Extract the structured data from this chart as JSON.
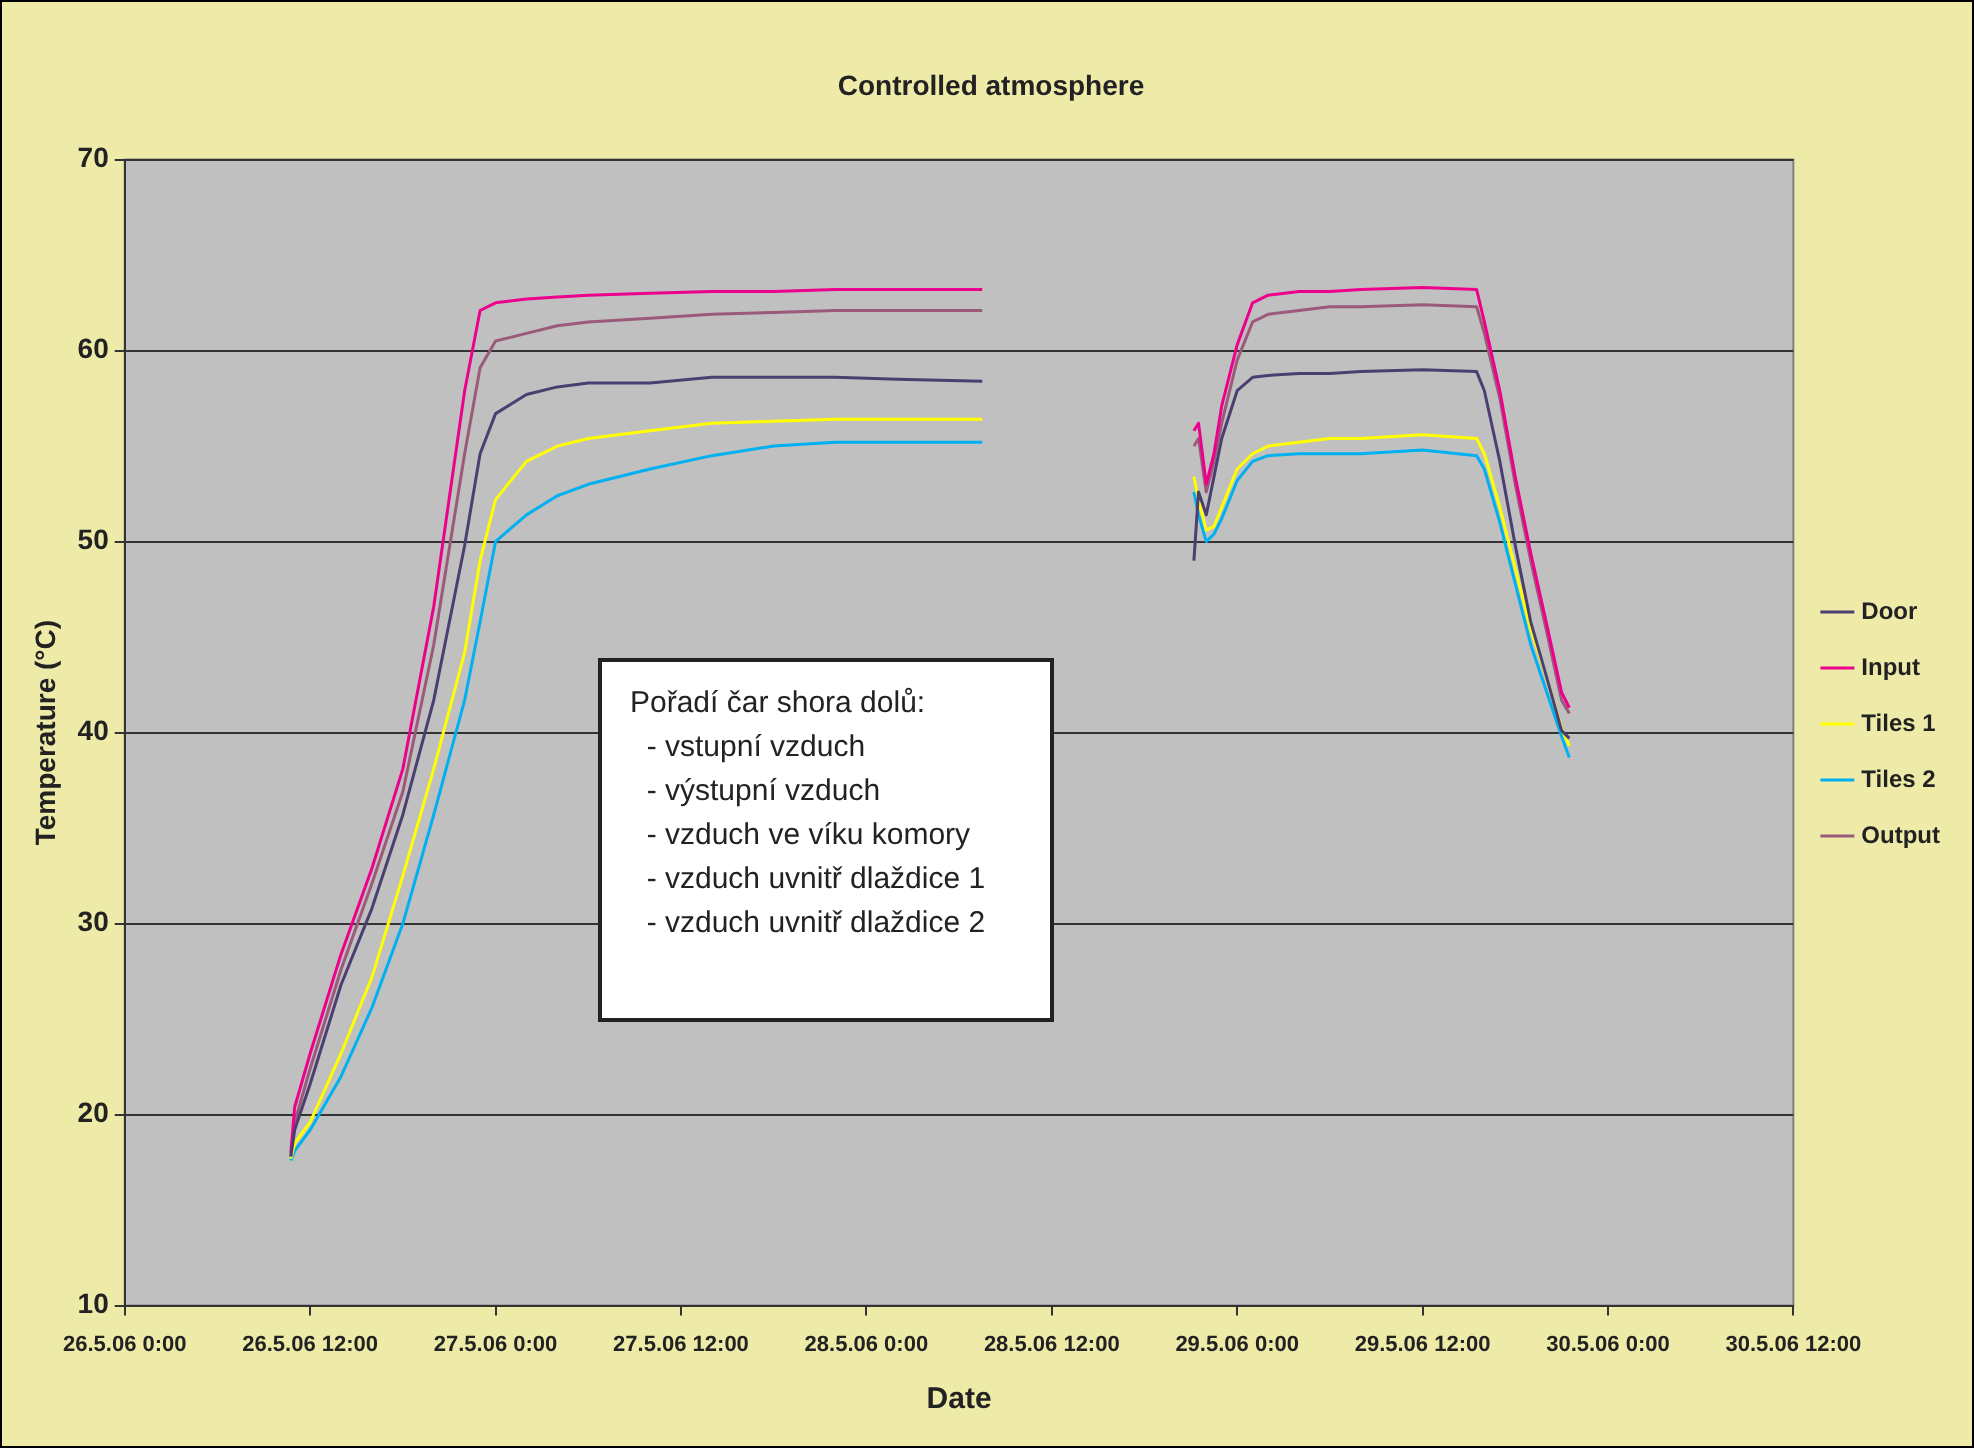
{
  "chart_data": {
    "type": "line",
    "title": "Controlled atmosphere",
    "xlabel": "Date",
    "ylabel": "Temperature (°C)",
    "x": [
      "--05-26T10:45",
      "--05-26T11:00",
      "--05-26T12:00",
      "--05-26T14:00",
      "--05-26T16:00",
      "--05-26T18:00",
      "--05-26T20:00",
      "--05-26T22:00",
      "--05-26T23:00",
      "--05-27T00:00",
      "--05-27T02:00",
      "--05-27T04:00",
      "--05-27T06:00",
      "--05-27T10:00",
      "--05-27T14:00",
      "--05-27T18:00",
      "--05-27T22:00",
      "--05-28T02:00",
      "--05-28T07:30",
      "--05-28T14:00",
      "--05-28T21:12",
      "--05-28T21:30",
      "--05-28T22:00",
      "--05-28T22:30",
      "--05-28T23:00",
      "--05-29T00:00",
      "--05-29T01:00",
      "--05-29T02:00",
      "--05-29T04:00",
      "--05-29T06:00",
      "--05-29T08:00",
      "--05-29T12:00",
      "--05-29T15:30",
      "--05-29T16:00",
      "--05-29T17:00",
      "--05-29T18:00",
      "--05-29T19:00",
      "--05-29T20:00",
      "--05-29T21:00",
      "--05-29T21:30"
    ],
    "series": [
      {
        "name": "Door",
        "color": "#4b3f72",
        "values": [
          17.8,
          19.2,
          21.6,
          26.8,
          30.8,
          35.7,
          41.7,
          49.8,
          54.6,
          56.7,
          57.7,
          58.1,
          58.3,
          58.3,
          58.6,
          58.6,
          58.6,
          58.5,
          58.4,
          null,
          49,
          52.6,
          51.4,
          53.4,
          55.4,
          57.9,
          58.6,
          58.7,
          58.8,
          58.8,
          58.9,
          59,
          58.9,
          57.9,
          54.2,
          49.8,
          45.8,
          43,
          40.1,
          39.7
        ]
      },
      {
        "name": "Input",
        "color": "#ec008c",
        "values": [
          18,
          20.4,
          23.2,
          28.4,
          32.9,
          38.1,
          46.6,
          57.9,
          62.1,
          62.5,
          62.7,
          62.8,
          62.9,
          63,
          63.1,
          63.1,
          63.2,
          63.2,
          63.2,
          null,
          55.8,
          56.2,
          53,
          54.6,
          57.1,
          60.3,
          62.5,
          62.9,
          63.1,
          63.1,
          63.2,
          63.3,
          63.2,
          61.5,
          57.9,
          53.4,
          49.4,
          45.8,
          42.1,
          41.3
        ]
      },
      {
        "name": "Tiles 1",
        "color": "#ffff00",
        "values": [
          17.7,
          18.5,
          19.6,
          23.2,
          27.2,
          32.5,
          38.1,
          44.2,
          49,
          52.2,
          54.2,
          55,
          55.4,
          55.8,
          56.2,
          56.3,
          56.4,
          56.4,
          56.4,
          null,
          53.4,
          52.2,
          50.6,
          50.8,
          51.8,
          53.8,
          54.6,
          55,
          55.2,
          55.4,
          55.4,
          55.6,
          55.4,
          54.6,
          51.8,
          48.6,
          45.4,
          43,
          40.2,
          39.3
        ]
      },
      {
        "name": "Tiles 2",
        "color": "#00b0f0",
        "values": [
          17.6,
          18.1,
          19.2,
          22,
          25.6,
          30,
          35.7,
          41.7,
          45.8,
          50,
          51.4,
          52.4,
          53,
          53.8,
          54.5,
          55,
          55.2,
          55.2,
          55.2,
          null,
          52.6,
          51.4,
          50,
          50.4,
          51.2,
          53.2,
          54.2,
          54.5,
          54.6,
          54.6,
          54.6,
          54.8,
          54.5,
          53.8,
          51,
          47.8,
          44.6,
          42.2,
          39.8,
          38.7
        ]
      },
      {
        "name": "Output",
        "color": "#9b5a7a",
        "values": [
          17.8,
          19.6,
          22.4,
          27.6,
          32.1,
          36.9,
          44.6,
          54.6,
          59.1,
          60.5,
          60.9,
          61.3,
          61.5,
          61.7,
          61.9,
          62,
          62.1,
          62.1,
          62.1,
          null,
          55,
          55.4,
          52.6,
          54.2,
          56.2,
          59.5,
          61.5,
          61.9,
          62.1,
          62.3,
          62.3,
          62.4,
          62.3,
          60.9,
          57.5,
          53,
          49,
          45.4,
          41.7,
          41
        ]
      }
    ],
    "xlim": [
      "--05-26T00:00",
      "--05-30T12:00"
    ],
    "xticks": [
      {
        "value": "--05-26T00:00",
        "label": "26.5.06 0:00"
      },
      {
        "value": "--05-26T12:00",
        "label": "26.5.06 12:00"
      },
      {
        "value": "--05-27T00:00",
        "label": "27.5.06 0:00"
      },
      {
        "value": "--05-27T12:00",
        "label": "27.5.06 12:00"
      },
      {
        "value": "--05-28T00:00",
        "label": "28.5.06 0:00"
      },
      {
        "value": "--05-28T12:00",
        "label": "28.5.06 12:00"
      },
      {
        "value": "--05-29T00:00",
        "label": "29.5.06 0:00"
      },
      {
        "value": "--05-29T12:00",
        "label": "29.5.06 12:00"
      },
      {
        "value": "--05-30T00:00",
        "label": "30.5.06 0:00"
      },
      {
        "value": "--05-30T12:00",
        "label": "30.5.06 12:00"
      }
    ],
    "ylim": [
      10,
      70
    ],
    "yticks": [
      10,
      20,
      30,
      40,
      50,
      60,
      70
    ],
    "grid": "y",
    "legend": "right",
    "marker": "none",
    "line_style": "solid",
    "annotations": [
      "Pořadí čar shora dolů:\n  - vstupní vzduch\n  - výstupní vzduch\n  - vzduch ve víku komory\n  - vzduch uvnitř dlaždice 1\n  - vzduch uvnitř dlaždice 2"
    ]
  }
}
